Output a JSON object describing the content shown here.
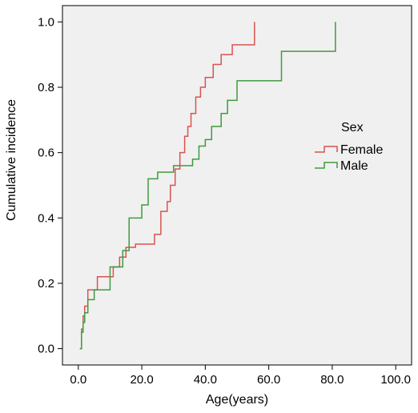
{
  "chart_data": {
    "type": "line",
    "xlabel": "Age(years)",
    "ylabel": "Cumulative incidence",
    "xlim": [
      -5,
      105
    ],
    "ylim": [
      -0.05,
      1.05
    ],
    "x_ticks": [
      "0.0",
      "20.0",
      "40.0",
      "60.0",
      "80.0",
      "100.0"
    ],
    "y_ticks": [
      "0.0",
      "0.2",
      "0.4",
      "0.6",
      "0.8",
      "1.0"
    ],
    "x_tick_values": [
      0,
      20,
      40,
      60,
      80,
      100
    ],
    "y_tick_values": [
      0,
      0.2,
      0.4,
      0.6,
      0.8,
      1.0
    ],
    "grid": false,
    "step": true,
    "legend": {
      "title": "Sex",
      "position": "right"
    },
    "series": [
      {
        "name": "Female",
        "color": "#d9534f",
        "points": [
          [
            0.5,
            0.0
          ],
          [
            1.0,
            0.06
          ],
          [
            1.5,
            0.1
          ],
          [
            2.0,
            0.13
          ],
          [
            3.0,
            0.18
          ],
          [
            6.0,
            0.22
          ],
          [
            9.0,
            0.22
          ],
          [
            11.0,
            0.25
          ],
          [
            13.0,
            0.28
          ],
          [
            15.0,
            0.31
          ],
          [
            18.0,
            0.32
          ],
          [
            24.0,
            0.35
          ],
          [
            26.0,
            0.42
          ],
          [
            28.0,
            0.45
          ],
          [
            29.0,
            0.5
          ],
          [
            30.5,
            0.55
          ],
          [
            32.0,
            0.6
          ],
          [
            33.5,
            0.65
          ],
          [
            34.5,
            0.68
          ],
          [
            35.5,
            0.72
          ],
          [
            37.0,
            0.77
          ],
          [
            38.5,
            0.8
          ],
          [
            40.0,
            0.83
          ],
          [
            42.5,
            0.87
          ],
          [
            45.0,
            0.9
          ],
          [
            48.5,
            0.93
          ],
          [
            52.0,
            0.93
          ],
          [
            55.5,
            1.0
          ]
        ]
      },
      {
        "name": "Male",
        "color": "#3f9a3f",
        "points": [
          [
            0.5,
            0.0
          ],
          [
            1.0,
            0.05
          ],
          [
            1.5,
            0.08
          ],
          [
            2.0,
            0.11
          ],
          [
            3.0,
            0.15
          ],
          [
            5.0,
            0.18
          ],
          [
            10.0,
            0.25
          ],
          [
            14.0,
            0.3
          ],
          [
            16.0,
            0.4
          ],
          [
            20.0,
            0.44
          ],
          [
            22.0,
            0.52
          ],
          [
            25.0,
            0.54
          ],
          [
            30.0,
            0.56
          ],
          [
            36.0,
            0.58
          ],
          [
            38.0,
            0.62
          ],
          [
            40.0,
            0.64
          ],
          [
            42.0,
            0.68
          ],
          [
            45.0,
            0.72
          ],
          [
            47.0,
            0.76
          ],
          [
            50.0,
            0.82
          ],
          [
            56.0,
            0.82
          ],
          [
            64.0,
            0.91
          ],
          [
            81.0,
            1.0
          ]
        ]
      }
    ]
  }
}
